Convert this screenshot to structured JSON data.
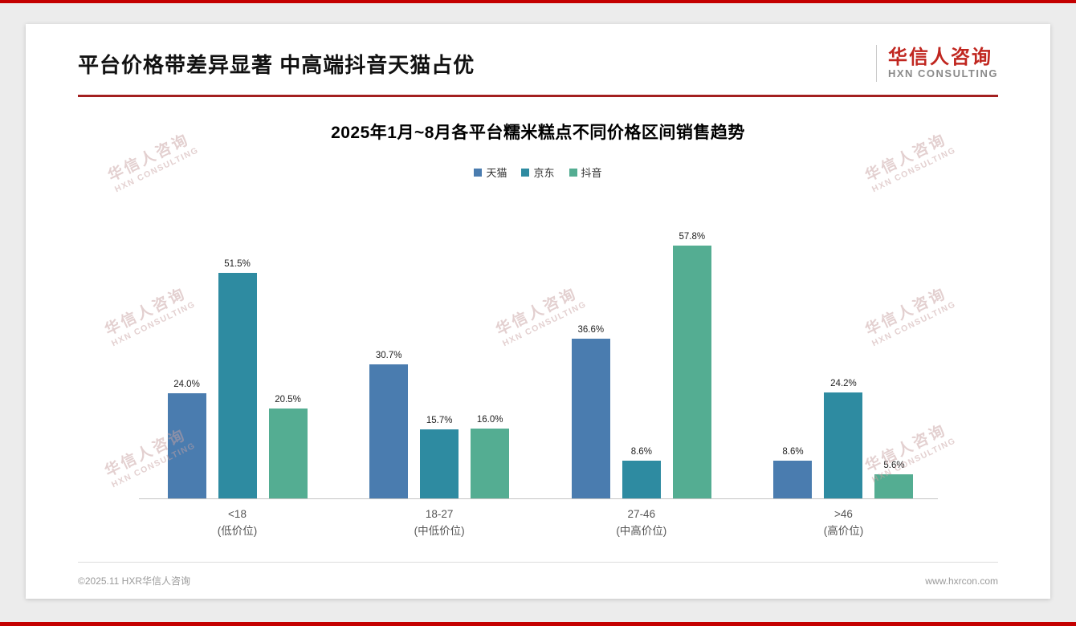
{
  "header": {
    "title": "平台价格带差异显著 中高端抖音天猫占优",
    "logo": {
      "name": "华信人咨询",
      "tagline": "HXN CONSULTING"
    }
  },
  "watermark": {
    "line1": "华信人咨询",
    "line2": "HXN CONSULTING"
  },
  "footer": {
    "copyright": "©2025.11 HXR华信人咨询",
    "website": "www.hxrcon.com"
  },
  "chart_data": {
    "type": "bar",
    "title": "2025年1月~8月各平台糯米糕点不同价格区间销售趋势",
    "categories": [
      {
        "label": "<18",
        "sub": "(低价位)"
      },
      {
        "label": "18-27",
        "sub": "(中低价位)"
      },
      {
        "label": "27-46",
        "sub": "(中高价位)"
      },
      {
        "label": ">46",
        "sub": "(高价位)"
      }
    ],
    "series": [
      {
        "name": "天猫",
        "color": "#4a7caf",
        "values": [
          24.0,
          30.7,
          36.6,
          8.6
        ]
      },
      {
        "name": "京东",
        "color": "#2e8ba1",
        "values": [
          51.5,
          15.7,
          8.6,
          24.2
        ]
      },
      {
        "name": "抖音",
        "color": "#54ad92",
        "values": [
          20.5,
          16.0,
          57.8,
          5.6
        ]
      }
    ],
    "value_suffix": "%",
    "ylim": [
      0,
      60
    ],
    "grid": false,
    "legend_position": "top"
  }
}
